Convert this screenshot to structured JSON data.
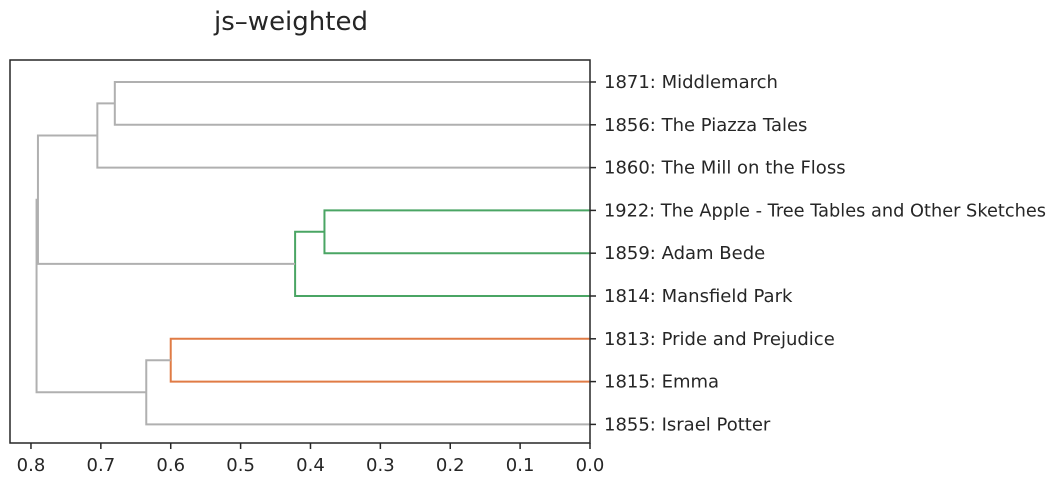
{
  "chart_data": {
    "type": "dendrogram",
    "title": "js–weighted",
    "orientation": "left",
    "xlim": [
      0.83,
      0.0
    ],
    "xticks": [
      0.8,
      0.7,
      0.6,
      0.5,
      0.4,
      0.3,
      0.2,
      0.1,
      0.0
    ],
    "xtick_labels": [
      "0.8",
      "0.7",
      "0.6",
      "0.5",
      "0.4",
      "0.3",
      "0.2",
      "0.1",
      "0.0"
    ],
    "leaves": [
      "1871: Middlemarch",
      "1856: The Piazza Tales",
      "1860: The Mill on the Floss",
      "1922: The Apple - Tree Tables and Other Sketches",
      "1859: Adam Bede",
      "1814: Mansfield Park",
      "1813: Pride and Prejudice",
      "1815: Emma",
      "1855: Israel Potter"
    ],
    "links": [
      {
        "left": "1871: Middlemarch",
        "right": "1856: The Piazza Tales",
        "height": 0.68,
        "color": "#b0b0b0"
      },
      {
        "left": "1871: Middlemarch + 1856: The Piazza Tales",
        "right": "1860: The Mill on the Floss",
        "height": 0.705,
        "color": "#b0b0b0"
      },
      {
        "left": "1922: The Apple - Tree Tables and Other Sketches",
        "right": "1859: Adam Bede",
        "height": 0.38,
        "color": "#4aa564"
      },
      {
        "left": "1922: The Apple - Tree Tables and Other Sketches + 1859: Adam Bede",
        "right": "1814: Mansfield Park",
        "height": 0.422,
        "color": "#4aa564"
      },
      {
        "left": "1813: Pride and Prejudice",
        "right": "1815: Emma",
        "height": 0.6,
        "color": "#e07b45"
      },
      {
        "left": "1813: Pride and Prejudice + 1815: Emma",
        "right": "1855: Israel Potter",
        "height": 0.635,
        "color": "#b0b0b0"
      },
      {
        "left": "1871: Middlemarch + 1856: The Piazza Tales + 1860: The Mill on the Floss",
        "right": "1922: The Apple - Tree Tables and Other Sketches + 1859: Adam Bede + 1814: Mansfield Park",
        "height": 0.79,
        "color": "#b0b0b0"
      },
      {
        "left": "1871: Middlemarch + 1856: The Piazza Tales + 1860: The Mill on the Floss + 1922: The Apple - Tree Tables and Other Sketches + 1859: Adam Bede + 1814: Mansfield Park",
        "right": "1813: Pride and Prejudice + 1815: Emma + 1855: Israel Potter",
        "height": 0.792,
        "color": "#b0b0b0"
      }
    ],
    "cluster_colors": {
      "above_threshold": "#b0b0b0",
      "cluster_green": "#4aa564",
      "cluster_orange": "#e07b45"
    },
    "grid": false,
    "legend": "none"
  }
}
